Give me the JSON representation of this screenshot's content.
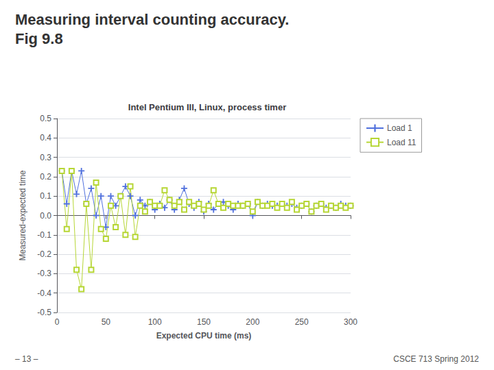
{
  "chart_data": {
    "type": "line",
    "title": "Intel Pentium III, Linux, process timer",
    "annotations": [
      "Measuring interval counting accuracy.",
      "Fig 9.8",
      "– 13 –",
      "CSCE 713 Spring 2012"
    ],
    "xlabel": "Expected CPU time (ms)",
    "ylabel": "Measured-expected time",
    "xlim": [
      0,
      300
    ],
    "ylim": [
      -0.5,
      0.5
    ],
    "xticks": [
      0,
      50,
      100,
      150,
      200,
      250,
      300
    ],
    "yticks": [
      -0.5,
      -0.4,
      -0.3,
      -0.2,
      -0.1,
      {
        "value": 0,
        "label": "0.0"
      },
      0.1,
      0.2,
      0.3,
      0.4,
      0.5
    ],
    "grid": "y",
    "legend": "upper right",
    "x": [
      5,
      10,
      15,
      20,
      25,
      30,
      35,
      40,
      45,
      50,
      55,
      60,
      65,
      70,
      75,
      80,
      85,
      90,
      95,
      100,
      105,
      110,
      115,
      120,
      125,
      130,
      135,
      140,
      145,
      150,
      155,
      160,
      165,
      170,
      175,
      180,
      185,
      190,
      195,
      200,
      205,
      210,
      215,
      220,
      225,
      230,
      235,
      240,
      245,
      250,
      255,
      260,
      265,
      270,
      275,
      280,
      285,
      290,
      295,
      300
    ],
    "series": [
      {
        "name": "Load 1",
        "marker": "plus",
        "values": [
          0.23,
          0.06,
          0.23,
          0.11,
          0.23,
          0.06,
          0.14,
          0.0,
          0.1,
          -0.06,
          0.1,
          0.05,
          0.1,
          0.15,
          0.1,
          0.0,
          0.08,
          0.05,
          0.07,
          0.03,
          0.06,
          0.04,
          0.08,
          0.03,
          0.08,
          0.14,
          0.06,
          0.04,
          0.07,
          0.02,
          0.06,
          0.03,
          0.06,
          0.07,
          0.05,
          0.03,
          0.06,
          0.05,
          0.06,
          0.0,
          0.07,
          0.05,
          0.06,
          0.05,
          0.05,
          0.06,
          0.05,
          0.06,
          0.04,
          0.05,
          0.06,
          0.02,
          0.05,
          0.06,
          0.04,
          0.05,
          0.04,
          0.06,
          0.05,
          0.05
        ]
      },
      {
        "name": "Load 11",
        "marker": "square",
        "values": [
          0.23,
          -0.07,
          0.23,
          -0.28,
          -0.38,
          0.06,
          -0.28,
          0.17,
          -0.07,
          -0.12,
          0.05,
          -0.06,
          0.1,
          -0.1,
          0.15,
          -0.11,
          0.05,
          0.02,
          0.07,
          0.05,
          0.05,
          0.13,
          0.08,
          0.05,
          0.07,
          0.03,
          0.07,
          0.05,
          0.06,
          0.03,
          0.05,
          0.13,
          0.06,
          0.04,
          0.06,
          0.05,
          0.05,
          0.05,
          0.06,
          0.02,
          0.07,
          0.05,
          0.05,
          0.06,
          0.04,
          0.06,
          0.04,
          0.07,
          0.03,
          0.05,
          0.06,
          0.02,
          0.05,
          0.06,
          0.03,
          0.05,
          0.04,
          0.05,
          0.04,
          0.05
        ]
      }
    ]
  }
}
